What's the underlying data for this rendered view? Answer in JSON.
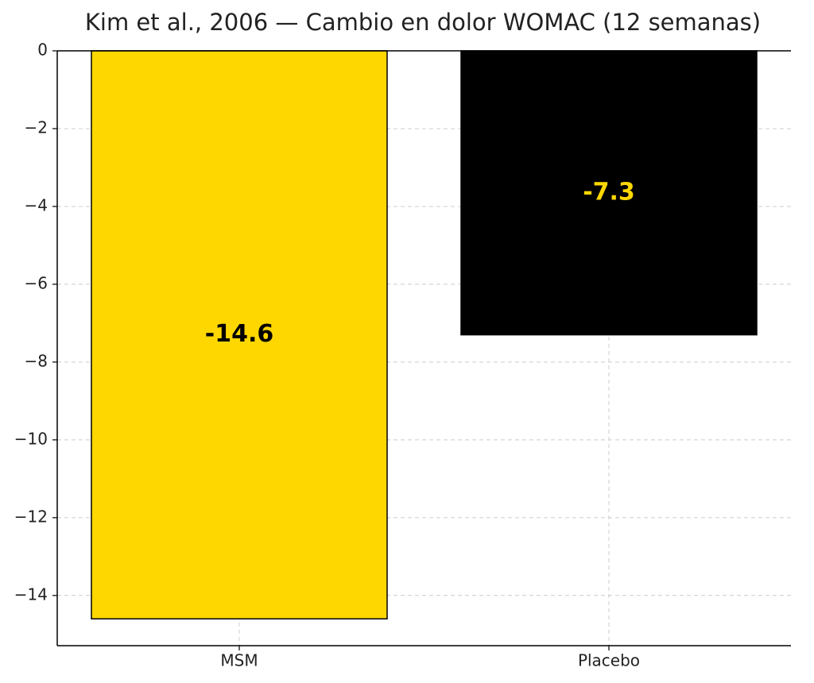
{
  "chart_data": {
    "type": "bar",
    "title": "Kim et al., 2006 — Cambio en dolor WOMAC (12 semanas)",
    "categories": [
      "MSM",
      "Placebo"
    ],
    "values": [
      -14.6,
      -7.3
    ],
    "colors": [
      "#FFD700",
      "#000000"
    ],
    "label_colors": [
      "#000000",
      "#FFD700"
    ],
    "ylim": [
      -15.29,
      0
    ],
    "yticks": [
      0,
      {
        "value": -2,
        "label": "−2"
      },
      {
        "value": -4,
        "label": "−4"
      },
      {
        "value": -6,
        "label": "−6"
      },
      {
        "value": -8,
        "label": "−8"
      },
      {
        "value": -10,
        "label": "−10"
      },
      {
        "value": -12,
        "label": "−12"
      },
      {
        "value": -14,
        "label": "−14"
      }
    ],
    "grid": true
  }
}
